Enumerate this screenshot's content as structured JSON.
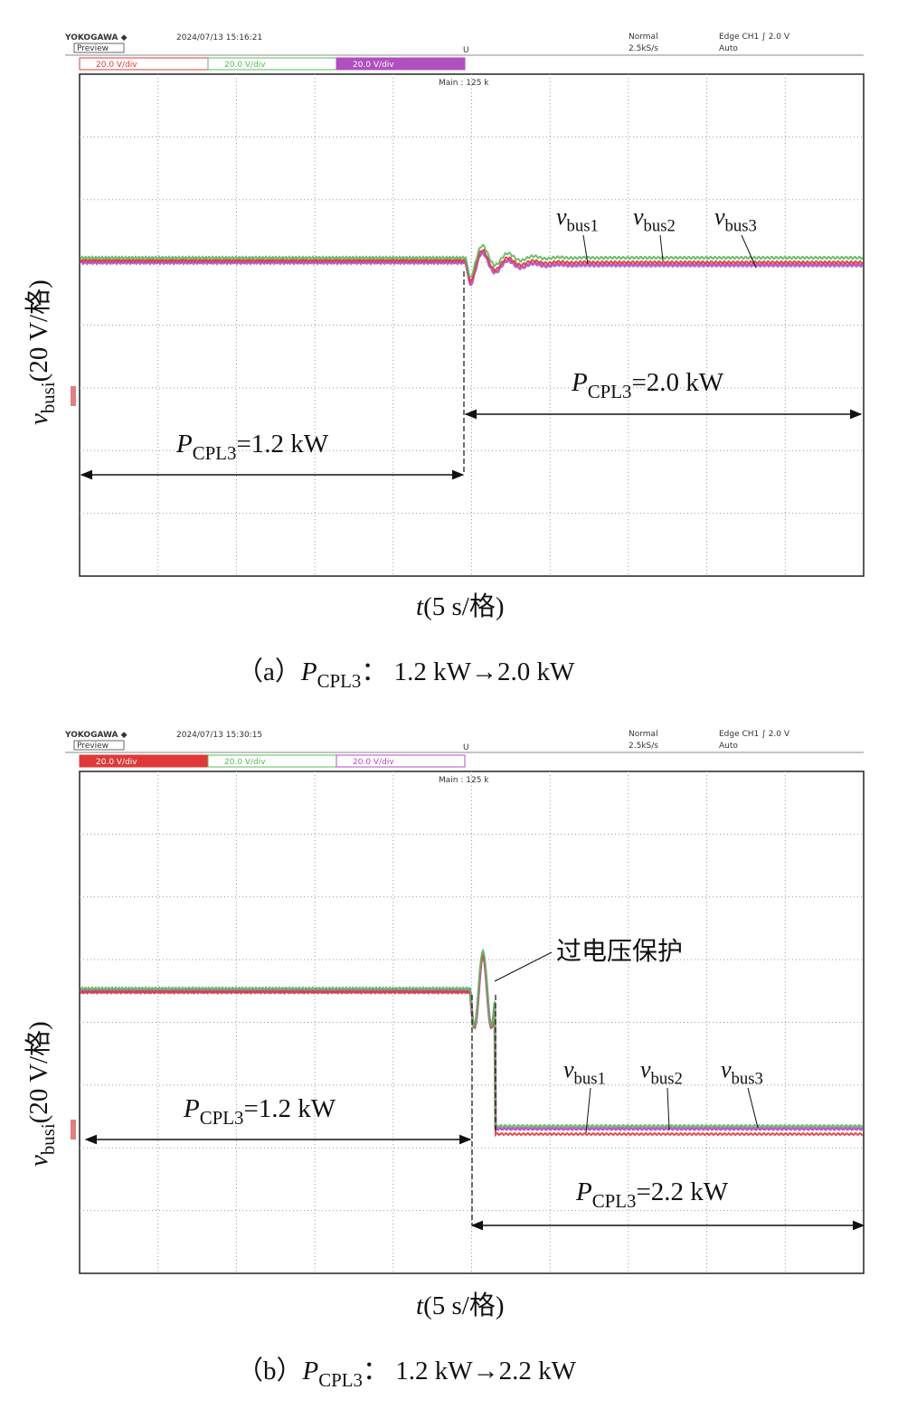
{
  "panels": [
    {
      "header": {
        "brand": "YOKOGAWA ◆",
        "datetime": "2024/07/13 15:16:21",
        "mode": "Preview",
        "acq": "Normal",
        "rate": "2.5kS/s",
        "trigger": "Edge CH1 ∫ 2.0 V",
        "trigger_mode": "Auto",
        "marker": "U"
      },
      "channels": [
        "20.0 V/div",
        "20.0 V/div",
        "20.0 V/div"
      ],
      "main": "Main : 125 k",
      "traces": [
        {
          "main": "v",
          "sub": "bus1"
        },
        {
          "main": "v",
          "sub": "bus2"
        },
        {
          "main": "v",
          "sub": "bus3"
        }
      ],
      "ylabel": {
        "main": "v",
        "sub": "busi",
        "unit": "(20 V/格)"
      },
      "xlabel": {
        "main": "t",
        "unit": "(5 s/格)"
      },
      "annotations": [
        {
          "main": "P",
          "sub": "CPL3",
          "value": "=1.2 kW"
        },
        {
          "main": "P",
          "sub": "CPL3",
          "value": "=2.0 kW"
        }
      ],
      "caption": {
        "tag": "（a）",
        "main": "P",
        "sub": "CPL3",
        "rest": "：  1.2 kW→2.0 kW"
      }
    },
    {
      "header": {
        "brand": "YOKOGAWA ◆",
        "datetime": "2024/07/13 15:30:15",
        "mode": "Preview",
        "acq": "Normal",
        "rate": "2.5kS/s",
        "trigger": "Edge CH1 ∫ 2.0 V",
        "trigger_mode": "Auto",
        "marker": "U"
      },
      "channels": [
        "20.0 V/div",
        "20.0 V/div",
        "20.0 V/div"
      ],
      "main": "Main : 125 k",
      "traces": [
        {
          "main": "v",
          "sub": "bus1"
        },
        {
          "main": "v",
          "sub": "bus2"
        },
        {
          "main": "v",
          "sub": "bus3"
        }
      ],
      "ylabel": {
        "main": "v",
        "sub": "busi",
        "unit": "(20 V/格)"
      },
      "xlabel": {
        "main": "t",
        "unit": "(5 s/格)"
      },
      "annotations": [
        {
          "main": "P",
          "sub": "CPL3",
          "value": "=1.2 kW"
        },
        {
          "main": "P",
          "sub": "CPL3",
          "value": "=2.2 kW"
        }
      ],
      "protection": "过电压保护",
      "caption": {
        "tag": "（b）",
        "main": "P",
        "sub": "CPL3",
        "rest": "：  1.2 kW→2.2 kW"
      }
    }
  ]
}
